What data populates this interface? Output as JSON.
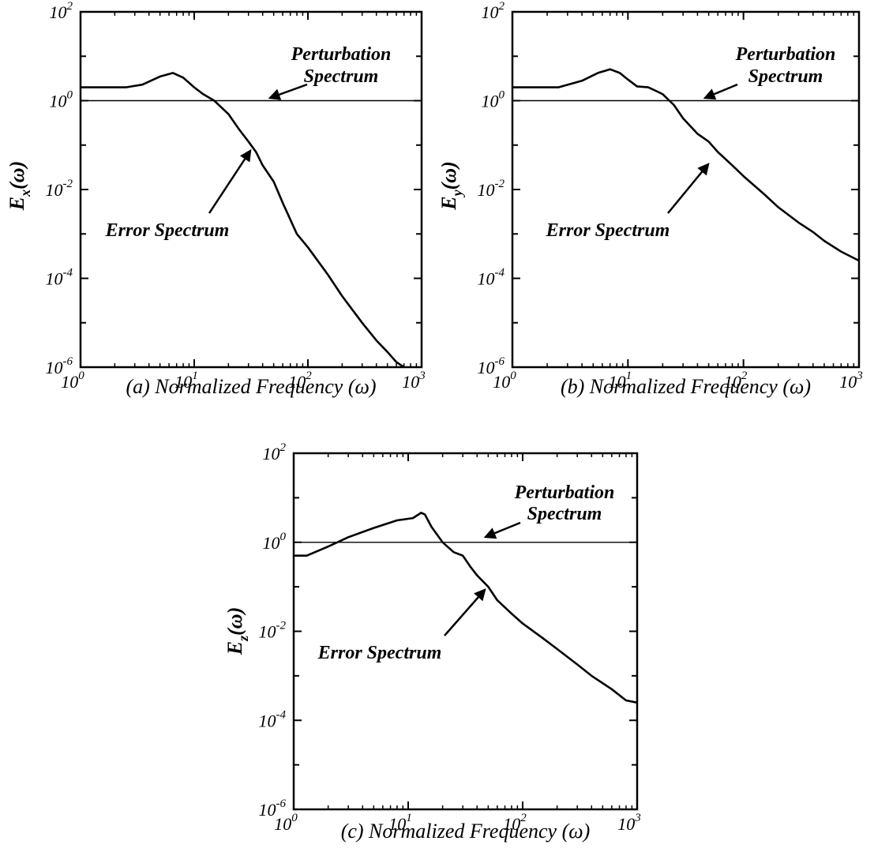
{
  "chart_data": [
    {
      "type": "line",
      "panel": "(a)",
      "xscale": "log",
      "yscale": "log",
      "xlim": [
        1,
        1000
      ],
      "ylim": [
        1e-06,
        100
      ],
      "xlabel": "(a)  Normalized  Frequency (ω)",
      "ylabel_base": "E",
      "ylabel_sub": "x",
      "ylabel_tail": "(ω)",
      "x_ticks": [
        {
          "base": "10",
          "exp": "0"
        },
        {
          "base": "10",
          "exp": "1"
        },
        {
          "base": "10",
          "exp": "2"
        },
        {
          "base": "10",
          "exp": "3"
        }
      ],
      "y_ticks": [
        {
          "base": "10",
          "exp": "2"
        },
        {
          "base": "10",
          "exp": "0"
        },
        {
          "base": "10",
          "exp": "-2"
        },
        {
          "base": "10",
          "exp": "-4"
        },
        {
          "base": "10",
          "exp": "-6"
        }
      ],
      "grid": false,
      "series": [
        {
          "values_x": [
            1,
            2.5,
            3.5,
            5,
            6.5,
            8,
            10,
            12,
            15,
            20,
            25,
            30,
            35,
            40,
            50,
            60,
            80,
            100,
            150,
            200,
            300,
            400,
            500,
            600,
            700
          ],
          "values_y": [
            2,
            2,
            2.3,
            3.5,
            4.2,
            3.3,
            2,
            1.4,
            1,
            0.5,
            0.22,
            0.12,
            0.07,
            0.035,
            0.015,
            0.005,
            0.001,
            0.0005,
            0.00012,
            4e-05,
            1e-05,
            4e-06,
            2.2e-06,
            1.3e-06,
            1e-06
          ]
        },
        {
          "values_x": [
            1,
            1000
          ],
          "values_y": [
            1,
            1
          ]
        }
      ],
      "annotations": {
        "perturbation_line1": "Perturbation",
        "perturbation_line2": "Spectrum",
        "error": "Error  Spectrum"
      }
    },
    {
      "type": "line",
      "panel": "(b)",
      "xscale": "log",
      "yscale": "log",
      "xlim": [
        1,
        1000
      ],
      "ylim": [
        1e-06,
        100
      ],
      "xlabel": "(b)  Normalized  Frequency (ω)",
      "ylabel_base": "E",
      "ylabel_sub": "y",
      "ylabel_tail": "(ω)",
      "x_ticks": [
        {
          "base": "10",
          "exp": "0"
        },
        {
          "base": "10",
          "exp": "1"
        },
        {
          "base": "10",
          "exp": "2"
        },
        {
          "base": "10",
          "exp": "3"
        }
      ],
      "y_ticks": [
        {
          "base": "10",
          "exp": "2"
        },
        {
          "base": "10",
          "exp": "0"
        },
        {
          "base": "10",
          "exp": "-2"
        },
        {
          "base": "10",
          "exp": "-4"
        },
        {
          "base": "10",
          "exp": "-6"
        }
      ],
      "grid": false,
      "series": [
        {
          "values_x": [
            1,
            2.5,
            4,
            5.5,
            7,
            8.5,
            10,
            12,
            15,
            18,
            20,
            25,
            30,
            40,
            50,
            60,
            80,
            100,
            150,
            200,
            300,
            400,
            500,
            700,
            1000
          ],
          "values_y": [
            2,
            2,
            2.8,
            4.2,
            5.1,
            4.2,
            3,
            2.1,
            2,
            1.6,
            1.4,
            0.8,
            0.4,
            0.18,
            0.12,
            0.07,
            0.035,
            0.02,
            0.008,
            0.004,
            0.0018,
            0.0011,
            0.0007,
            0.0004,
            0.00025
          ]
        },
        {
          "values_x": [
            1,
            1000
          ],
          "values_y": [
            1,
            1
          ]
        }
      ],
      "annotations": {
        "perturbation_line1": "Perturbation",
        "perturbation_line2": "Spectrum",
        "error": "Error  Spectrum"
      }
    },
    {
      "type": "line",
      "panel": "(c)",
      "xscale": "log",
      "yscale": "log",
      "xlim": [
        1,
        1000
      ],
      "ylim": [
        1e-06,
        100
      ],
      "xlabel": "(c)  Normalized  Frequency (ω)",
      "ylabel_base": "E",
      "ylabel_sub": "z",
      "ylabel_tail": "(ω)",
      "x_ticks": [
        {
          "base": "10",
          "exp": "0"
        },
        {
          "base": "10",
          "exp": "1"
        },
        {
          "base": "10",
          "exp": "2"
        },
        {
          "base": "10",
          "exp": "3"
        }
      ],
      "y_ticks": [
        {
          "base": "10",
          "exp": "2"
        },
        {
          "base": "10",
          "exp": "0"
        },
        {
          "base": "10",
          "exp": "-2"
        },
        {
          "base": "10",
          "exp": "-4"
        },
        {
          "base": "10",
          "exp": "-6"
        }
      ],
      "grid": false,
      "series": [
        {
          "values_x": [
            1,
            1.3,
            2,
            3,
            5,
            8,
            11,
            13,
            14,
            16,
            20,
            25,
            30,
            35,
            40,
            50,
            60,
            80,
            100,
            150,
            200,
            300,
            400,
            600,
            800,
            1000
          ],
          "values_y": [
            0.5,
            0.5,
            0.8,
            1.3,
            2.1,
            3.1,
            3.5,
            4.6,
            4.2,
            2.2,
            1,
            0.6,
            0.5,
            0.28,
            0.18,
            0.1,
            0.05,
            0.025,
            0.015,
            0.007,
            0.004,
            0.0018,
            0.001,
            0.0005,
            0.00028,
            0.00025
          ]
        },
        {
          "values_x": [
            1,
            1000
          ],
          "values_y": [
            1,
            1
          ]
        }
      ],
      "annotations": {
        "perturbation_line1": "Perturbation",
        "perturbation_line2": "Spectrum",
        "error": "Error  Spectrum"
      }
    }
  ]
}
